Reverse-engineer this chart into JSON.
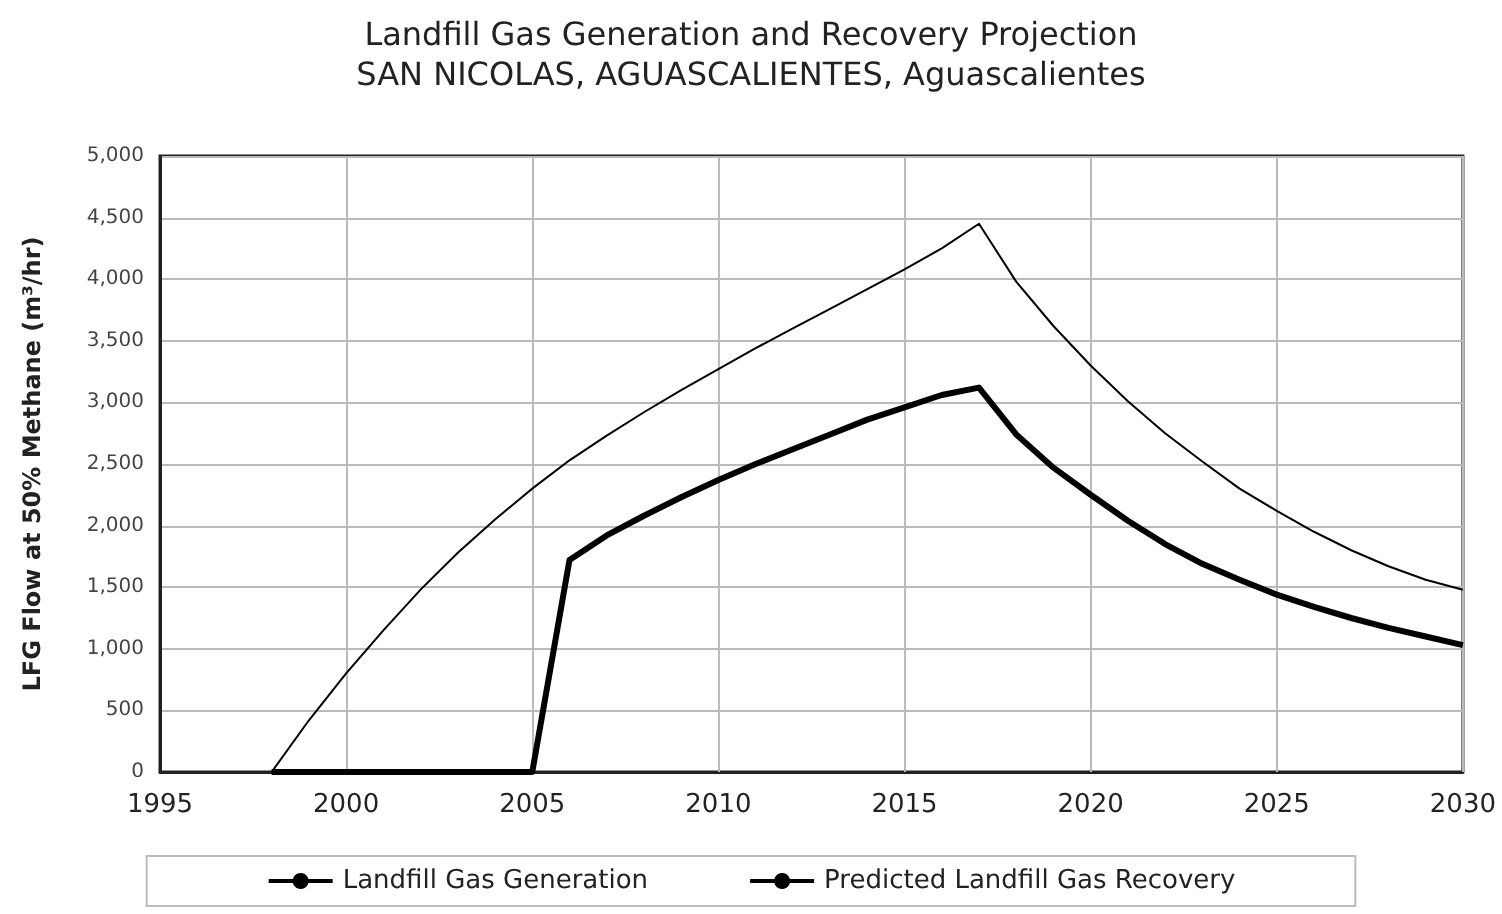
{
  "chart_data": {
    "type": "line",
    "title": "Landfill Gas Generation and Recovery Projection",
    "subtitle": "SAN NICOLAS, AGUASCALIENTES, Aguascalientes",
    "ylabel": "LFG Flow at 50% Methane (m³/hr)",
    "x": [
      1998,
      1999,
      2000,
      2001,
      2002,
      2003,
      2004,
      2005,
      2006,
      2007,
      2008,
      2009,
      2010,
      2011,
      2012,
      2013,
      2014,
      2015,
      2016,
      2017,
      2018,
      2019,
      2020,
      2021,
      2022,
      2023,
      2024,
      2025,
      2026,
      2027,
      2028,
      2029,
      2030
    ],
    "series": [
      {
        "name": "Landfill Gas Generation",
        "color": "#000000",
        "values": [
          0,
          420,
          800,
          1150,
          1480,
          1780,
          2050,
          2300,
          2530,
          2730,
          2920,
          3100,
          3270,
          3440,
          3600,
          3760,
          3920,
          4080,
          4250,
          4450,
          3980,
          3620,
          3300,
          3010,
          2750,
          2520,
          2300,
          2120,
          1950,
          1800,
          1670,
          1560,
          1480
        ]
      },
      {
        "name": "Predicted Landfill Gas Recovery",
        "color": "#000000",
        "values": [
          0,
          0,
          0,
          0,
          0,
          0,
          0,
          0,
          1720,
          1920,
          2080,
          2230,
          2370,
          2500,
          2620,
          2740,
          2860,
          2960,
          3060,
          3120,
          2740,
          2470,
          2250,
          2040,
          1850,
          1690,
          1560,
          1440,
          1340,
          1250,
          1170,
          1100,
          1030
        ]
      }
    ],
    "xlim": [
      1995,
      2030
    ],
    "xticks": [
      1995,
      2000,
      2005,
      2010,
      2015,
      2020,
      2025,
      2030
    ],
    "ylim": [
      0,
      5000
    ],
    "yticks": [
      0,
      500,
      {
        "value": 1000,
        "label": "1,000"
      },
      {
        "value": 1500,
        "label": "1,500"
      },
      {
        "value": 2000,
        "label": "2,000"
      },
      {
        "value": 2500,
        "label": "2,500"
      },
      {
        "value": 3000,
        "label": "3,000"
      },
      {
        "value": 3500,
        "label": "3,500"
      },
      {
        "value": 4000,
        "label": "4,000"
      },
      {
        "value": 4500,
        "label": "4,500"
      },
      {
        "value": 5000,
        "label": "5,000"
      }
    ],
    "grid": true,
    "legend": "bottom",
    "marker": "none",
    "line_style": "solid"
  }
}
